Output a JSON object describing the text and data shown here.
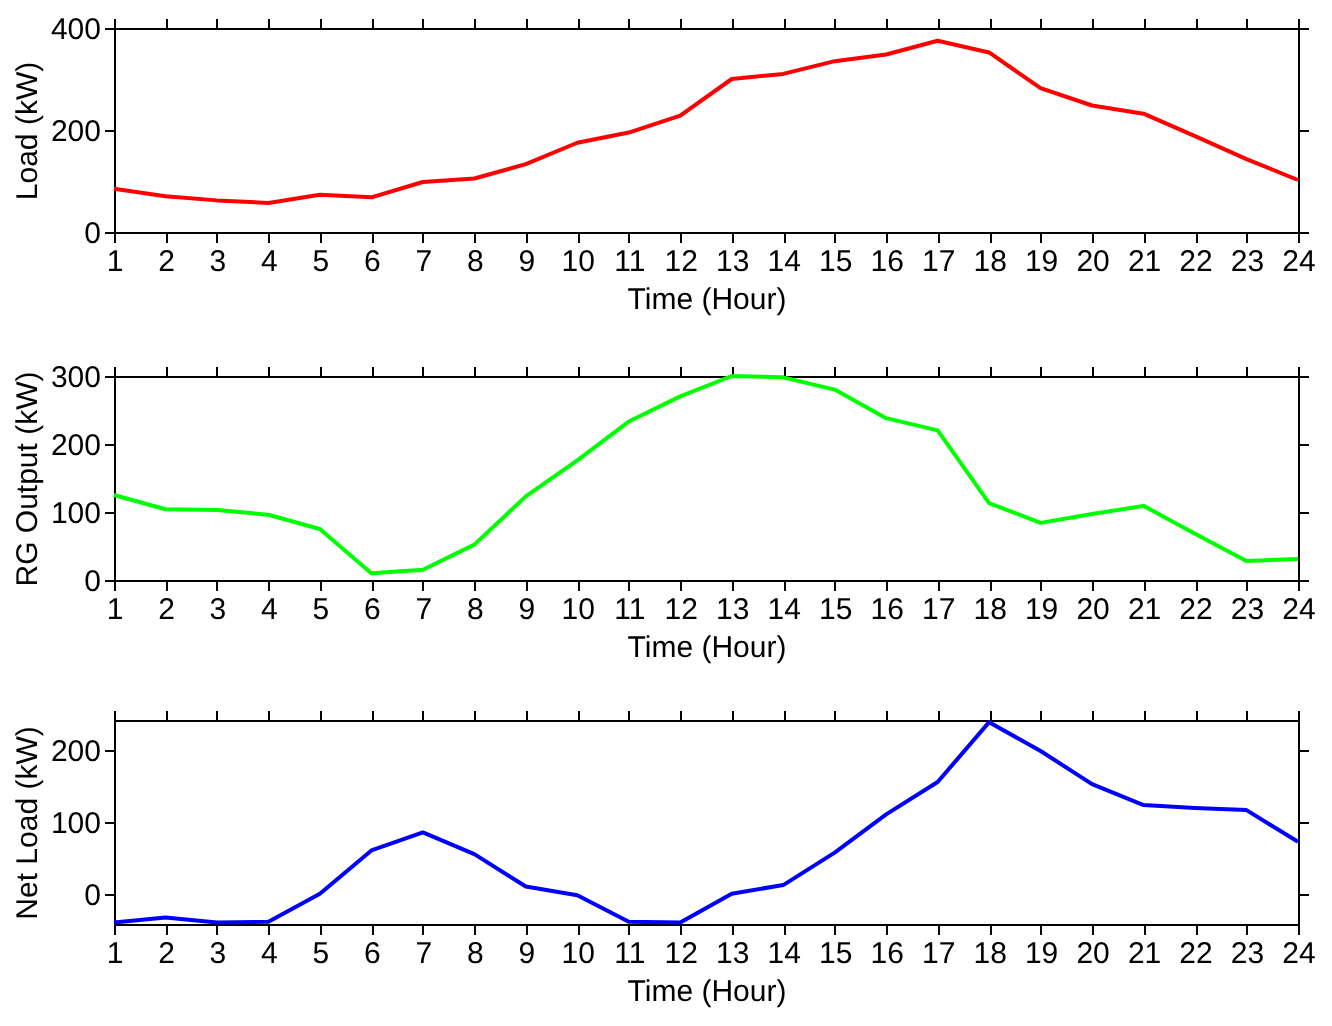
{
  "chart_data": [
    {
      "type": "line",
      "xlabel": "Time (Hour)",
      "ylabel": "Load (kW)",
      "x": [
        1,
        2,
        3,
        4,
        5,
        6,
        7,
        8,
        9,
        10,
        11,
        12,
        13,
        14,
        15,
        16,
        17,
        18,
        19,
        20,
        21,
        22,
        23,
        24
      ],
      "xlim": [
        1,
        24
      ],
      "xticks": [
        1,
        2,
        3,
        4,
        5,
        6,
        7,
        8,
        9,
        10,
        11,
        12,
        13,
        14,
        15,
        16,
        17,
        18,
        19,
        20,
        21,
        22,
        23,
        24
      ],
      "ylim": [
        0,
        400
      ],
      "yticks": [
        0,
        200,
        400
      ],
      "grid": false,
      "line_style": "solid",
      "series": [
        {
          "color": "#ff0000",
          "values": [
            85,
            70,
            62,
            57,
            73,
            68,
            98,
            105,
            133,
            175,
            195,
            228,
            300,
            310,
            335,
            348,
            375,
            352,
            282,
            248,
            232,
            188,
            143,
            102
          ]
        }
      ]
    },
    {
      "type": "line",
      "xlabel": "Time (Hour)",
      "ylabel": "RG Output (kW)",
      "x": [
        1,
        2,
        3,
        4,
        5,
        6,
        7,
        8,
        9,
        10,
        11,
        12,
        13,
        14,
        15,
        16,
        17,
        18,
        19,
        20,
        21,
        22,
        23,
        24
      ],
      "xlim": [
        1,
        24
      ],
      "xticks": [
        1,
        2,
        3,
        4,
        5,
        6,
        7,
        8,
        9,
        10,
        11,
        12,
        13,
        14,
        15,
        16,
        17,
        18,
        19,
        20,
        21,
        22,
        23,
        24
      ],
      "ylim": [
        0,
        300
      ],
      "yticks": [
        0,
        100,
        200,
        300
      ],
      "grid": false,
      "line_style": "solid",
      "series": [
        {
          "color": "#00ff00",
          "values": [
            125,
            104,
            103,
            96,
            75,
            10,
            15,
            52,
            123,
            176,
            233,
            270,
            300,
            298,
            280,
            238,
            220,
            113,
            84,
            97,
            109,
            68,
            28,
            31
          ]
        }
      ]
    },
    {
      "type": "line",
      "xlabel": "Time (Hour)",
      "ylabel": "Net Load (kW)",
      "x": [
        1,
        2,
        3,
        4,
        5,
        6,
        7,
        8,
        9,
        10,
        11,
        12,
        13,
        14,
        15,
        16,
        17,
        18,
        19,
        20,
        21,
        22,
        23,
        24
      ],
      "xlim": [
        1,
        24
      ],
      "xticks": [
        1,
        2,
        3,
        4,
        5,
        6,
        7,
        8,
        9,
        10,
        11,
        12,
        13,
        14,
        15,
        16,
        17,
        18,
        19,
        20,
        21,
        22,
        23,
        24
      ],
      "ylim": [
        -42,
        241
      ],
      "yticks": [
        0,
        100,
        200
      ],
      "grid": false,
      "line_style": "solid",
      "series": [
        {
          "color": "#0000ff",
          "values": [
            -40,
            -33,
            -40,
            -39,
            0,
            60,
            85,
            55,
            10,
            -2,
            -39,
            -40,
            0,
            12,
            57,
            110,
            155,
            238,
            198,
            152,
            123,
            119,
            116,
            72
          ]
        }
      ]
    }
  ]
}
